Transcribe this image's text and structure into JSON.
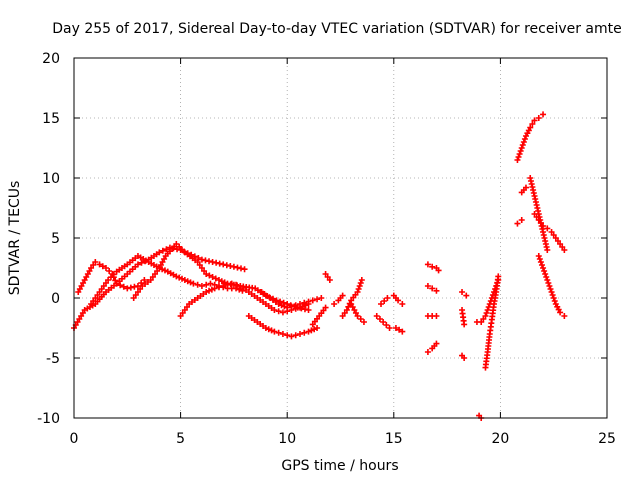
{
  "chart_data": {
    "type": "scatter",
    "title": "Day 255 of 2017, Sidereal Day-to-day VTEC variation (SDTVAR) for receiver amte",
    "xlabel": "GPS time / hours",
    "ylabel": "SDTVAR / TECUs",
    "xlim": [
      0,
      25
    ],
    "ylim": [
      -10,
      20
    ],
    "xticks": [
      0,
      5,
      10,
      15,
      20,
      25
    ],
    "yticks": [
      -10,
      -5,
      0,
      5,
      10,
      15,
      20
    ],
    "xtick_labels": [
      "0",
      "5",
      "10",
      "15",
      "20",
      "25"
    ],
    "ytick_labels": [
      "-10",
      "-5",
      "0",
      "5",
      "10",
      "15",
      "20"
    ],
    "grid": true,
    "marker": "plus",
    "color": "#ff0000",
    "segments": [
      {
        "x": [
          0.0,
          0.5,
          1.0,
          1.5,
          2.0,
          2.5,
          3.0,
          3.5,
          4.0,
          4.5,
          5.0,
          5.5,
          6.0,
          6.5,
          7.0,
          7.5,
          8.0
        ],
        "y": [
          -2.5,
          -1.0,
          -0.5,
          0.5,
          1.2,
          2.0,
          2.8,
          3.2,
          3.8,
          4.2,
          4.0,
          3.6,
          3.2,
          3.0,
          2.8,
          2.6,
          2.4
        ]
      },
      {
        "x": [
          0.2,
          0.5,
          0.8,
          1.0,
          1.2,
          1.5,
          1.8,
          2.0,
          2.5,
          3.0,
          3.3
        ],
        "y": [
          0.5,
          1.5,
          2.5,
          3.0,
          2.8,
          2.5,
          2.0,
          1.2,
          0.8,
          1.0,
          1.5
        ]
      },
      {
        "x": [
          0.8,
          1.2,
          1.6,
          2.0,
          2.5,
          3.0,
          3.5,
          4.0,
          4.3,
          4.8,
          5.2,
          5.8,
          6.2,
          6.8,
          7.2,
          7.8,
          8.5,
          9.0,
          9.5,
          10.0,
          10.5,
          11.0
        ],
        "y": [
          -0.5,
          0.5,
          1.5,
          2.2,
          2.8,
          3.5,
          3.0,
          2.5,
          3.5,
          4.5,
          3.8,
          3.0,
          2.0,
          1.5,
          1.2,
          1.0,
          0.8,
          0.2,
          -0.2,
          -0.5,
          -0.8,
          -1.0
        ]
      },
      {
        "x": [
          2.8,
          3.2,
          3.6,
          4.0,
          4.4,
          4.8,
          5.2,
          5.6,
          6.0,
          6.4,
          6.8,
          7.2,
          7.6,
          7.9
        ],
        "y": [
          0.0,
          1.0,
          1.5,
          2.5,
          2.2,
          1.8,
          1.5,
          1.2,
          1.0,
          1.2,
          1.0,
          0.8,
          0.8,
          0.6
        ]
      },
      {
        "x": [
          5.0,
          5.4,
          5.8,
          6.2,
          6.6,
          7.0,
          7.4,
          7.8,
          8.2,
          8.6,
          9.0,
          9.4,
          9.8,
          10.2,
          10.6,
          11.0
        ],
        "y": [
          -1.5,
          -0.5,
          0.0,
          0.5,
          0.8,
          1.0,
          1.2,
          1.0,
          0.5,
          0.0,
          -0.5,
          -1.0,
          -1.2,
          -1.0,
          -0.8,
          -0.5
        ]
      },
      {
        "x": [
          8.2,
          8.6,
          9.0,
          9.4,
          9.8,
          10.2,
          10.6,
          11.0,
          11.4
        ],
        "y": [
          -1.5,
          -2.0,
          -2.5,
          -2.8,
          -3.0,
          -3.2,
          -3.0,
          -2.8,
          -2.5
        ]
      },
      {
        "x": [
          8.8,
          9.2,
          9.6,
          10.0,
          10.4,
          10.8,
          11.2,
          11.6
        ],
        "y": [
          0.5,
          0.0,
          -0.5,
          -0.8,
          -0.6,
          -0.4,
          -0.2,
          0.0
        ]
      },
      {
        "x": [
          11.8,
          12.0
        ],
        "y": [
          2.0,
          1.5
        ]
      },
      {
        "x": [
          11.2,
          11.5,
          11.8
        ],
        "y": [
          -2.2,
          -1.5,
          -0.8
        ]
      },
      {
        "x": [
          12.6,
          12.8,
          13.0,
          13.3,
          13.5
        ],
        "y": [
          -1.5,
          -1.0,
          -0.2,
          0.5,
          1.5
        ]
      },
      {
        "x": [
          12.2,
          12.4,
          12.6
        ],
        "y": [
          -0.5,
          -0.2,
          0.2
        ]
      },
      {
        "x": [
          13.0,
          13.3,
          13.6
        ],
        "y": [
          -0.5,
          -1.5,
          -2.0
        ]
      },
      {
        "x": [
          14.2,
          14.5,
          14.8
        ],
        "y": [
          -1.5,
          -2.0,
          -2.5
        ]
      },
      {
        "x": [
          14.4,
          14.7
        ],
        "y": [
          -0.5,
          0.0
        ]
      },
      {
        "x": [
          15.0,
          15.2,
          15.4
        ],
        "y": [
          0.2,
          -0.2,
          -0.5
        ]
      },
      {
        "x": [
          15.1,
          15.4
        ],
        "y": [
          -2.5,
          -2.8
        ]
      },
      {
        "x": [
          16.6,
          16.8,
          17.0,
          17.1
        ],
        "y": [
          2.8,
          2.6,
          2.5,
          2.3
        ]
      },
      {
        "x": [
          16.6,
          16.8,
          17.0
        ],
        "y": [
          1.0,
          0.8,
          0.6
        ]
      },
      {
        "x": [
          16.6,
          16.8,
          17.0
        ],
        "y": [
          -1.5,
          -1.5,
          -1.5
        ]
      },
      {
        "x": [
          16.6,
          16.8,
          17.0
        ],
        "y": [
          -4.5,
          -4.2,
          -3.8
        ]
      },
      {
        "x": [
          18.2,
          18.4
        ],
        "y": [
          0.5,
          0.2
        ]
      },
      {
        "x": [
          18.2,
          18.3
        ],
        "y": [
          -1.0,
          -2.2
        ]
      },
      {
        "x": [
          18.2,
          18.3
        ],
        "y": [
          -4.8,
          -5.0
        ]
      },
      {
        "x": [
          18.9,
          19.1,
          19.3,
          19.5,
          19.7,
          19.9
        ],
        "y": [
          -2.0,
          -2.0,
          -1.5,
          -0.5,
          0.5,
          1.5
        ]
      },
      {
        "x": [
          19.3,
          19.4,
          19.5,
          19.6,
          19.7,
          19.8,
          19.9
        ],
        "y": [
          -5.8,
          -4.5,
          -3.0,
          -1.8,
          -0.5,
          0.5,
          1.8
        ]
      },
      {
        "x": [
          19.0,
          19.1
        ],
        "y": [
          -9.8,
          -10.0
        ]
      },
      {
        "x": [
          20.8,
          21.0,
          21.2,
          21.4,
          21.6,
          21.8,
          22.0
        ],
        "y": [
          11.5,
          12.5,
          13.5,
          14.2,
          14.8,
          15.0,
          15.3
        ]
      },
      {
        "x": [
          20.8,
          21.0
        ],
        "y": [
          6.2,
          6.5
        ]
      },
      {
        "x": [
          21.0,
          21.2
        ],
        "y": [
          8.8,
          9.2
        ]
      },
      {
        "x": [
          21.4,
          21.6,
          21.8,
          22.0,
          22.2
        ],
        "y": [
          10.0,
          8.5,
          7.0,
          5.5,
          4.0
        ]
      },
      {
        "x": [
          21.6,
          21.8,
          22.0,
          22.2,
          22.4,
          22.6,
          22.8,
          23.0
        ],
        "y": [
          7.0,
          6.5,
          6.0,
          5.8,
          5.5,
          5.0,
          4.5,
          4.0
        ]
      },
      {
        "x": [
          21.8,
          22.0,
          22.2,
          22.4,
          22.6,
          22.8,
          23.0
        ],
        "y": [
          3.5,
          2.5,
          1.5,
          0.5,
          -0.5,
          -1.2,
          -1.5
        ]
      }
    ]
  }
}
